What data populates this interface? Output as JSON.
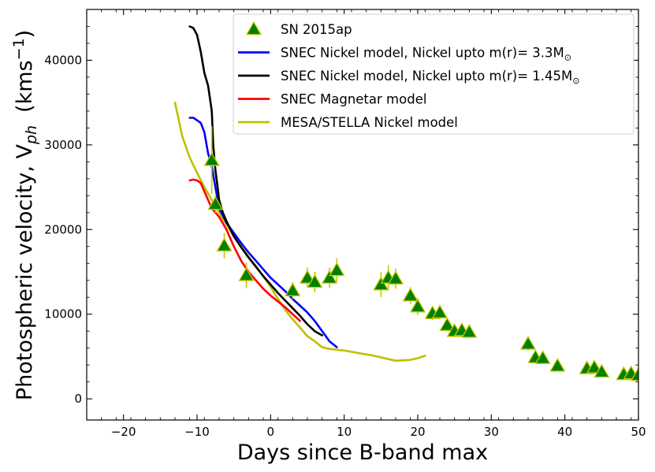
{
  "chart_data": {
    "type": "line",
    "title": "",
    "xlabel": "Days since B-band max",
    "ylabel_main": "Photospheric velocity, V",
    "ylabel_sub": "ph",
    "ylabel_unit": "(kms",
    "ylabel_exp": "−1",
    "ylabel_close": ")",
    "xlim": [
      -25,
      50
    ],
    "ylim": [
      -2500,
      46000
    ],
    "x_ticks": [
      -20,
      -10,
      0,
      10,
      20,
      30,
      40,
      50
    ],
    "x_tick_labels": [
      "−20",
      "−10",
      "0",
      "10",
      "20",
      "30",
      "40",
      "50"
    ],
    "y_ticks": [
      0,
      10000,
      20000,
      30000,
      40000
    ],
    "y_tick_labels": [
      "0",
      "10000",
      "20000",
      "30000",
      "40000"
    ],
    "grid": false,
    "legend_position": "top-right",
    "observations": {
      "name": "SN 2015ap",
      "color": "#008000",
      "edge_color": "#c8c800",
      "points": [
        {
          "x": -8,
          "y": 28200,
          "err": 4000
        },
        {
          "x": -7.5,
          "y": 23000,
          "err": 1000
        },
        {
          "x": -6.3,
          "y": 18100,
          "err": 1500
        },
        {
          "x": -3.3,
          "y": 14600,
          "err": 1500
        },
        {
          "x": 3,
          "y": 12800,
          "err": 1000
        },
        {
          "x": 5,
          "y": 14300,
          "err": 1200
        },
        {
          "x": 6,
          "y": 13800,
          "err": 1200
        },
        {
          "x": 8,
          "y": 14300,
          "err": 1200
        },
        {
          "x": 9,
          "y": 15200,
          "err": 1400
        },
        {
          "x": 15,
          "y": 13500,
          "err": 1500
        },
        {
          "x": 16,
          "y": 14300,
          "err": 1500
        },
        {
          "x": 17,
          "y": 14200,
          "err": 1200
        },
        {
          "x": 19,
          "y": 12200,
          "err": 1000
        },
        {
          "x": 20,
          "y": 10900,
          "err": 1000
        },
        {
          "x": 22,
          "y": 10100,
          "err": 800
        },
        {
          "x": 23,
          "y": 10200,
          "err": 800
        },
        {
          "x": 24,
          "y": 8700,
          "err": 600
        },
        {
          "x": 25,
          "y": 8000,
          "err": 600
        },
        {
          "x": 26,
          "y": 8100,
          "err": 600
        },
        {
          "x": 27,
          "y": 7900,
          "err": 600
        },
        {
          "x": 35,
          "y": 6500,
          "err": 800
        },
        {
          "x": 36,
          "y": 4900,
          "err": 600
        },
        {
          "x": 37,
          "y": 4800,
          "err": 600
        },
        {
          "x": 39,
          "y": 3900,
          "err": 600
        },
        {
          "x": 43,
          "y": 3600,
          "err": 500
        },
        {
          "x": 44,
          "y": 3700,
          "err": 500
        },
        {
          "x": 45,
          "y": 3200,
          "err": 500
        },
        {
          "x": 48,
          "y": 2900,
          "err": 500
        },
        {
          "x": 49,
          "y": 3000,
          "err": 500
        },
        {
          "x": 50,
          "y": 2800,
          "err": 500
        }
      ]
    },
    "series": [
      {
        "name": "SNEC Nickel model, Nickel upto m(r)= 3.3M",
        "name_sub": "⊙",
        "color": "#0000ff",
        "x": [
          -11,
          -10.5,
          -10,
          -9.5,
          -9,
          -8.5,
          -8,
          -7.5,
          -7,
          -6,
          -5,
          -4,
          -3,
          -2,
          -1,
          0,
          1,
          2,
          3,
          4,
          5,
          6,
          7,
          8,
          9
        ],
        "y": [
          33200,
          33200,
          32900,
          32600,
          31500,
          29000,
          27500,
          25000,
          22500,
          20800,
          19600,
          18400,
          17300,
          16300,
          15300,
          14300,
          13500,
          12700,
          11800,
          11000,
          10200,
          9200,
          8000,
          6800,
          6100
        ]
      },
      {
        "name": "SNEC Nickel model, Nickel upto m(r)= 1.45M",
        "name_sub": "⊙",
        "color": "#000000",
        "x": [
          -11,
          -10.5,
          -10,
          -9.5,
          -9,
          -8.5,
          -8,
          -7.8,
          -7.5,
          -7.2,
          -7,
          -6.5,
          -6,
          -5,
          -4,
          -3,
          -2,
          -1,
          0,
          1,
          2,
          3,
          4,
          5,
          6,
          7
        ],
        "y": [
          44000,
          43800,
          43000,
          41000,
          38500,
          37000,
          34000,
          30000,
          27000,
          25000,
          23500,
          22000,
          21000,
          19200,
          17900,
          16700,
          15600,
          14500,
          13500,
          12500,
          11600,
          10700,
          9800,
          8800,
          8000,
          7500
        ]
      },
      {
        "name": "SNEC Magnetar model",
        "name_sub": "",
        "color": "#ff0000",
        "x": [
          -11,
          -10.5,
          -10,
          -9.5,
          -9,
          -8.5,
          -8,
          -7.5,
          -7,
          -6,
          -5,
          -4,
          -3,
          -2,
          -1,
          0,
          1,
          2,
          3,
          4
        ],
        "y": [
          25800,
          25900,
          25800,
          25500,
          24500,
          23500,
          22500,
          22000,
          21500,
          20000,
          18000,
          16300,
          15000,
          14000,
          13000,
          12200,
          11500,
          10800,
          10000,
          9200
        ]
      },
      {
        "name": "MESA/STELLA Nickel model",
        "name_sub": "",
        "color": "#bfbf00",
        "x": [
          -13,
          -12,
          -11,
          -10,
          -9,
          -8,
          -7,
          -6,
          -5,
          -4,
          -3,
          -2,
          -1,
          0,
          1,
          2,
          3,
          4,
          5,
          6,
          7,
          8,
          9,
          10,
          12,
          14,
          16,
          17,
          19,
          20,
          21
        ],
        "y": [
          35000,
          31000,
          28500,
          26700,
          25000,
          23500,
          22000,
          20600,
          19200,
          18000,
          16800,
          15700,
          14500,
          13200,
          11800,
          10500,
          9400,
          8400,
          7400,
          6800,
          6100,
          5900,
          5800,
          5700,
          5400,
          5100,
          4700,
          4500,
          4600,
          4800,
          5100
        ]
      }
    ]
  }
}
